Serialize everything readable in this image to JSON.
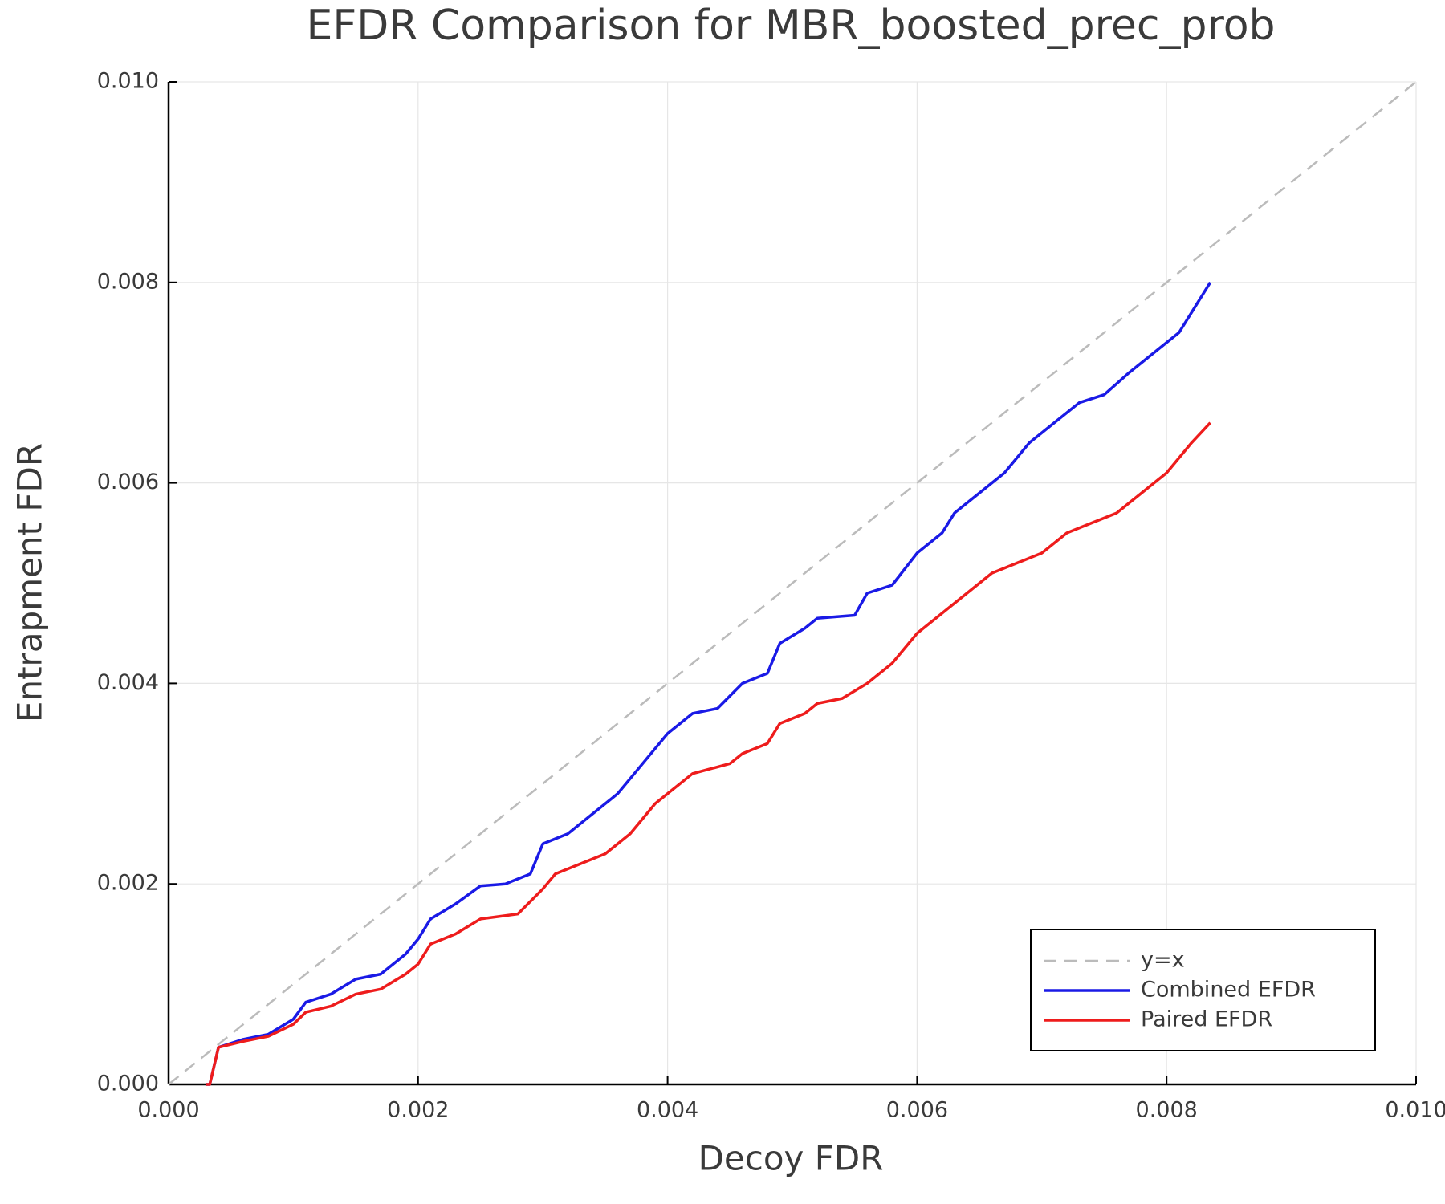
{
  "chart_data": {
    "type": "line",
    "title": "EFDR Comparison for MBR_boosted_prec_prob",
    "x_label": "Decoy FDR",
    "y_label": "Entrapment FDR",
    "xlim": [
      0,
      0.01
    ],
    "ylim": [
      0,
      0.01
    ],
    "xticks": [
      {
        "value": 0,
        "label": "0.000"
      },
      {
        "value": 0.002,
        "label": "0.002"
      },
      {
        "value": 0.004,
        "label": "0.004"
      },
      {
        "value": 0.006,
        "label": "0.006"
      },
      {
        "value": 0.008,
        "label": "0.008"
      },
      {
        "value": 0.01,
        "label": "0.010"
      }
    ],
    "yticks": [
      {
        "value": 0,
        "label": "0.000"
      },
      {
        "value": 0.002,
        "label": "0.002"
      },
      {
        "value": 0.004,
        "label": "0.004"
      },
      {
        "value": 0.006,
        "label": "0.006"
      },
      {
        "value": 0.008,
        "label": "0.008"
      },
      {
        "value": 0.01,
        "label": "0.010"
      }
    ],
    "grid": true,
    "legend": "bottom right",
    "series": [
      {
        "name": "y=x",
        "color": "#bbbbbb",
        "dashed": true,
        "x": [
          0,
          0.01
        ],
        "values": [
          0,
          0.01
        ]
      },
      {
        "name": "Combined EFDR",
        "color": "#1a1ae6",
        "x": [
          0.0003,
          0.00033,
          0.0004,
          0.0006,
          0.0008,
          0.001,
          0.0011,
          0.0013,
          0.0015,
          0.0017,
          0.0019,
          0.002,
          0.0021,
          0.0023,
          0.0025,
          0.0027,
          0.0029,
          0.003,
          0.0032,
          0.0034,
          0.0036,
          0.0038,
          0.004,
          0.0042,
          0.0044,
          0.0046,
          0.0048,
          0.0049,
          0.0051,
          0.0052,
          0.0055,
          0.0056,
          0.0058,
          0.006,
          0.0062,
          0.0063,
          0.0065,
          0.0067,
          0.0069,
          0.0071,
          0.0073,
          0.0075,
          0.0077,
          0.0079,
          0.0081,
          0.0082,
          0.00835
        ],
        "values": [
          0,
          0,
          0.00037,
          0.00045,
          0.0005,
          0.00065,
          0.00082,
          0.0009,
          0.00105,
          0.0011,
          0.0013,
          0.00145,
          0.00165,
          0.0018,
          0.00198,
          0.002,
          0.0021,
          0.0024,
          0.0025,
          0.0027,
          0.0029,
          0.0032,
          0.0035,
          0.0037,
          0.00375,
          0.004,
          0.0041,
          0.0044,
          0.00455,
          0.00465,
          0.00468,
          0.0049,
          0.00498,
          0.0053,
          0.0055,
          0.0057,
          0.0059,
          0.0061,
          0.0064,
          0.0066,
          0.0068,
          0.00688,
          0.0071,
          0.0073,
          0.0075,
          0.0077,
          0.008
        ]
      },
      {
        "name": "Paired EFDR",
        "color": "#ee1c1c",
        "x": [
          0.0003,
          0.00033,
          0.0004,
          0.0006,
          0.0008,
          0.001,
          0.0011,
          0.0013,
          0.0015,
          0.0017,
          0.0019,
          0.002,
          0.0021,
          0.0023,
          0.0025,
          0.0028,
          0.003,
          0.0031,
          0.0033,
          0.0035,
          0.0037,
          0.0039,
          0.004,
          0.0042,
          0.0045,
          0.0046,
          0.0048,
          0.0049,
          0.0051,
          0.0052,
          0.0054,
          0.0056,
          0.0058,
          0.006,
          0.0062,
          0.0064,
          0.0066,
          0.0068,
          0.007,
          0.0072,
          0.0074,
          0.0076,
          0.0078,
          0.008,
          0.0082,
          0.00835
        ],
        "values": [
          0,
          0,
          0.00037,
          0.00043,
          0.00048,
          0.0006,
          0.00072,
          0.00078,
          0.0009,
          0.00095,
          0.0011,
          0.0012,
          0.0014,
          0.0015,
          0.00165,
          0.0017,
          0.00195,
          0.0021,
          0.0022,
          0.0023,
          0.0025,
          0.0028,
          0.0029,
          0.0031,
          0.0032,
          0.0033,
          0.0034,
          0.0036,
          0.0037,
          0.0038,
          0.00385,
          0.004,
          0.0042,
          0.0045,
          0.0047,
          0.0049,
          0.0051,
          0.0052,
          0.0053,
          0.0055,
          0.0056,
          0.0057,
          0.0059,
          0.0061,
          0.0064,
          0.0066
        ]
      }
    ]
  }
}
